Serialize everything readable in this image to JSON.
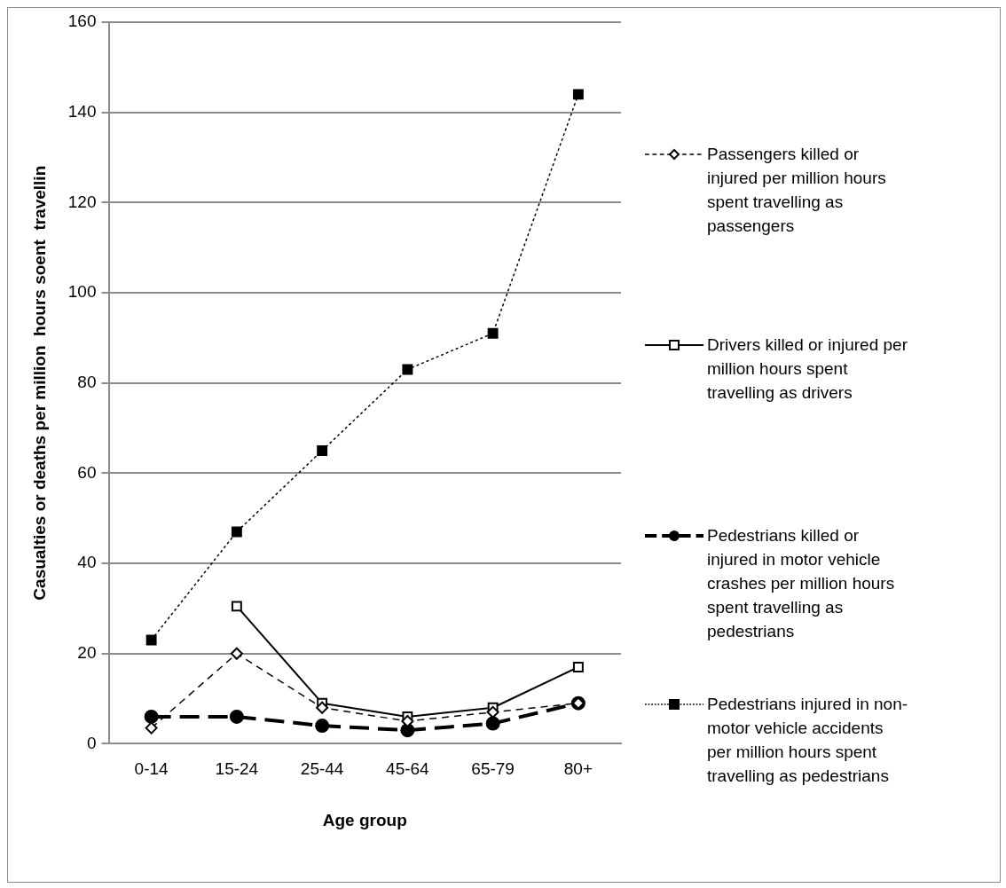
{
  "chart_data": {
    "type": "line",
    "xlabel": "Age group",
    "ylabel": "Casualties or deaths per million  hours soent  travellin",
    "categories": [
      "0-14",
      "15-24",
      "25-44",
      "45-64",
      "65-79",
      "80+"
    ],
    "ylim": [
      0,
      160
    ],
    "yticks": [
      0,
      20,
      40,
      60,
      80,
      100,
      120,
      140,
      160
    ],
    "grid": "y",
    "legend": "right",
    "series": [
      {
        "name": "Passengers killed or injured per million  hours spent travelling as passengers",
        "color": "#000000",
        "marker": "diamond",
        "line_style": "dashed",
        "values": [
          3.5,
          20,
          8,
          5,
          7,
          9
        ]
      },
      {
        "name": "Drivers killed or injured per million  hours spent travelling as drivers",
        "color": "#000000",
        "marker": "square",
        "line_style": "solid",
        "values": [
          null,
          30.5,
          9,
          6,
          8,
          17
        ]
      },
      {
        "name": "Pedestrians killed or injured in motor vehicle crashes per million  hours spent travelling as pedestrians",
        "color": "#000000",
        "marker": "circle",
        "line_style": "dashed",
        "values": [
          6,
          6,
          4,
          3,
          4.5,
          9
        ]
      },
      {
        "name": "Pedestrians injured in non-motor vehicle accidents per million hours spent travelling as pedestrians",
        "color": "#000000",
        "marker": "square",
        "line_style": "dotted",
        "values": [
          23,
          47,
          65,
          83,
          91,
          144
        ]
      }
    ]
  }
}
